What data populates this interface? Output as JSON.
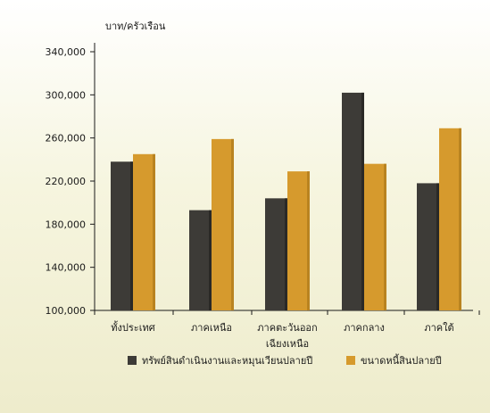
{
  "chart_data": {
    "type": "bar",
    "ylabel": "บาท/ครัวเรือน",
    "categories": [
      [
        "ทั้งประเทศ"
      ],
      [
        "ภาคเหนือ"
      ],
      [
        "ภาคตะวันออก",
        "เฉียงเหนือ"
      ],
      [
        "ภาคกลาง"
      ],
      [
        "ภาคใต้"
      ]
    ],
    "series": [
      {
        "name": "ทรัพย์สินดำเนินงานและหมุนเวียนปลายปี",
        "color": "#3d3b37",
        "values": [
          238000,
          193000,
          204000,
          302000,
          218000
        ]
      },
      {
        "name": "ขนาดหนี้สินปลายปี",
        "color": "#d69a2d",
        "values": [
          245000,
          259000,
          229000,
          236000,
          269000
        ]
      }
    ],
    "ylim": [
      100000,
      340000
    ],
    "yticks": [
      "100,000",
      "140,000",
      "180,000",
      "220,000",
      "260,000",
      "300,000",
      "340,000"
    ],
    "ytick_values": [
      100000,
      140000,
      180000,
      220000,
      260000,
      300000,
      340000
    ],
    "grid": false,
    "legend_position": "bottom",
    "background": "#f7f6e4"
  }
}
